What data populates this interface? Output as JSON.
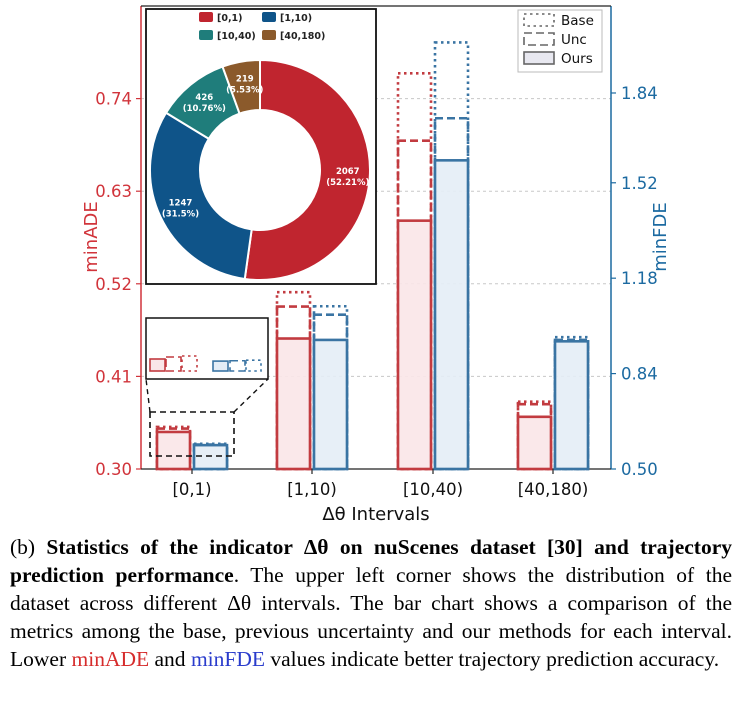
{
  "colors": {
    "ade": "#c23b40",
    "fde": "#3a74a3",
    "ade_fill": "#f9e6e8",
    "fde_fill": "#e4edf6",
    "ade_tick": "#d1343b",
    "fde_tick": "#1c6aa1",
    "pie": [
      "#c0252f",
      "#0f5489",
      "#1f7d7b",
      "#8b5a2b"
    ]
  },
  "chart_data": [
    {
      "type": "bar",
      "xlabel": "Δθ Intervals",
      "ylabel_left": "minADE",
      "ylabel_right": "minFDE",
      "categories": [
        "[0,1)",
        "[1,10)",
        "[10,40)",
        "[40,180)"
      ],
      "y_left": {
        "lim": [
          0.3,
          0.85
        ],
        "ticks": [
          "0.30",
          "0.41",
          "0.52",
          "0.63",
          "0.74"
        ]
      },
      "y_right": {
        "lim": [
          0.5,
          2.15
        ],
        "ticks": [
          "0.50",
          "0.84",
          "1.18",
          "1.52",
          "1.84"
        ]
      },
      "legend": {
        "position": "top-right",
        "entries": [
          "Base",
          "Unc",
          "Ours"
        ]
      },
      "series": [
        {
          "name": "Base",
          "metric": "minADE",
          "values": [
            0.35,
            0.51,
            0.77,
            0.38
          ]
        },
        {
          "name": "Unc",
          "metric": "minADE",
          "values": [
            0.348,
            0.493,
            0.69,
            0.377
          ]
        },
        {
          "name": "Ours",
          "metric": "minADE",
          "values": [
            0.344,
            0.455,
            0.595,
            0.362
          ]
        },
        {
          "name": "Base",
          "metric": "minFDE",
          "values": [
            0.59,
            1.08,
            2.02,
            0.97
          ]
        },
        {
          "name": "Unc",
          "metric": "minFDE",
          "values": [
            0.587,
            1.05,
            1.75,
            0.96
          ]
        },
        {
          "name": "Ours",
          "metric": "minFDE",
          "values": [
            0.585,
            0.96,
            1.6,
            0.955
          ]
        }
      ]
    },
    {
      "type": "pie",
      "style": "donut",
      "legend": [
        "[0,1)",
        "[1,10)",
        "[10,40)",
        "[40,180)"
      ],
      "values": [
        2067,
        1247,
        426,
        219
      ],
      "labels": [
        "2067\n(52.21%)",
        "1247\n(31.5%)",
        "426\n(10.76%)",
        "219\n(5.53%)"
      ],
      "percent": [
        52.21,
        31.5,
        10.76,
        5.53
      ]
    }
  ],
  "caption": {
    "prefix": "(b) ",
    "bold": "Statistics of the indicator Δθ on nuScenes dataset [30] and trajectory prediction performance",
    "text": ". The upper left corner shows the distribution of the dataset across different Δθ intervals. The bar chart shows a comparison of the metrics among the base, previous uncertainty and our methods for each interval. Lower ",
    "ade": "minADE",
    "mid": " and ",
    "fde": "minFDE",
    "end": " values indicate better trajectory prediction accuracy."
  }
}
